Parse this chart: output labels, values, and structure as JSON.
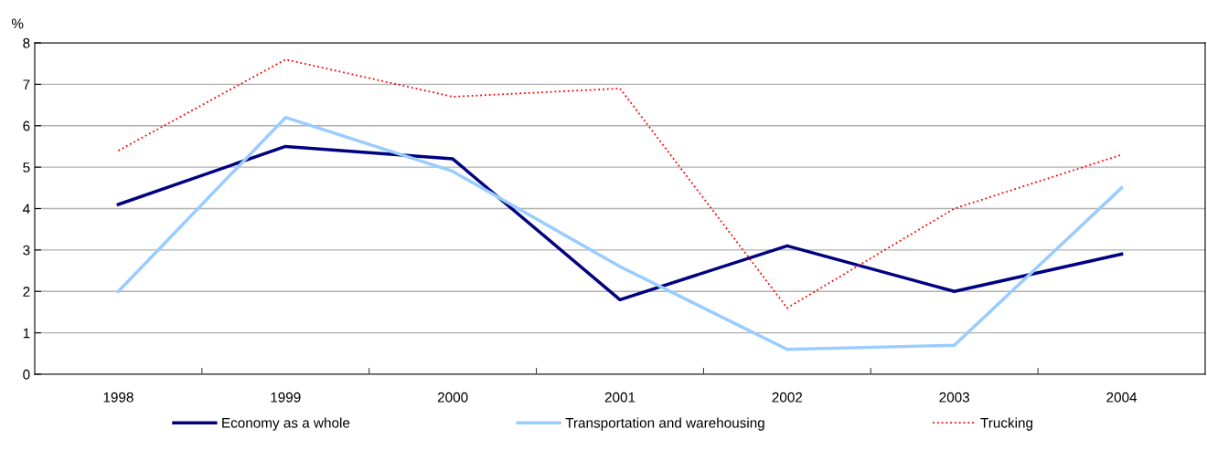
{
  "chart_data": {
    "type": "line",
    "ylabel": "%",
    "categories": [
      "1998",
      "1999",
      "2000",
      "2001",
      "2002",
      "2003",
      "2004"
    ],
    "series": [
      {
        "name": "Economy as a whole",
        "color": "#000080",
        "line_style": "solid",
        "values": [
          4.1,
          5.5,
          5.2,
          1.8,
          3.1,
          2.0,
          2.9
        ]
      },
      {
        "name": "Transportation and warehousing",
        "color": "#99ccff",
        "line_style": "solid",
        "values": [
          2.0,
          6.2,
          4.9,
          2.6,
          0.6,
          0.7,
          4.5
        ]
      },
      {
        "name": "Trucking",
        "color": "#ff0000",
        "line_style": "dotted",
        "values": [
          5.4,
          7.6,
          6.7,
          6.9,
          1.6,
          4.0,
          5.3
        ]
      }
    ],
    "ylim": [
      0,
      8
    ],
    "yticks": [
      0,
      1,
      2,
      3,
      4,
      5,
      6,
      7,
      8
    ],
    "grid": "y",
    "legend": "bottom",
    "marker": "none"
  }
}
